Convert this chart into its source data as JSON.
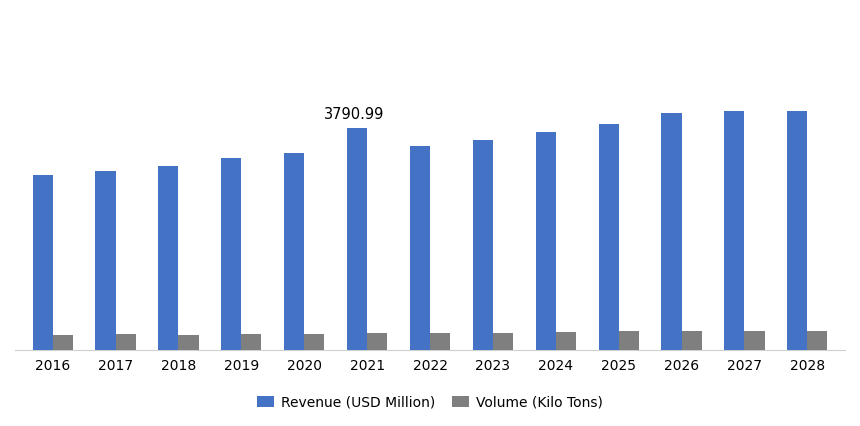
{
  "years": [
    2016,
    2017,
    2018,
    2019,
    2020,
    2021,
    2022,
    2023,
    2024,
    2025,
    2026,
    2027,
    2028
  ],
  "revenue": [
    2980,
    3060,
    3140,
    3270,
    3360,
    3790.99,
    3480,
    3580,
    3720,
    3850,
    4050,
    4080,
    4080
  ],
  "volume": [
    60,
    64,
    63,
    65,
    67,
    69,
    68,
    71,
    73,
    76,
    77,
    79,
    78
  ],
  "revenue_color": "#4472C4",
  "volume_color": "#7f7f7f",
  "annotation_value": "3790.99",
  "annotation_year_index": 5,
  "legend_labels": [
    "Revenue (USD Million)",
    "Volume (Kilo Tons)"
  ],
  "bar_width": 0.32,
  "background_color": "#ffffff",
  "axis_color": "#d0d0d0",
  "font_size_ticks": 10,
  "font_size_legend": 10,
  "font_size_annotation": 10.5
}
